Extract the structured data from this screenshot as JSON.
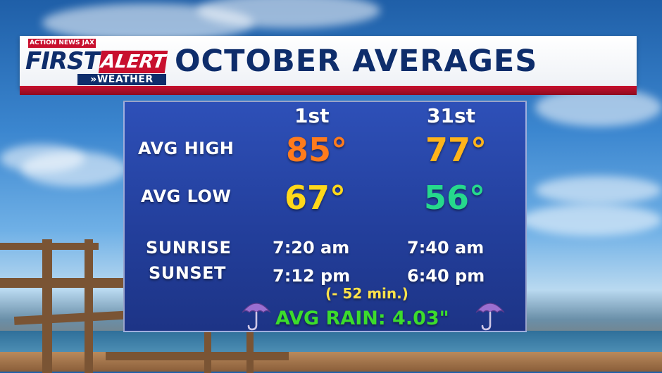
{
  "header": {
    "title": "OCTOBER AVERAGES",
    "logo": {
      "top_text": "ACTION NEWS JAX",
      "first": "FIRST",
      "alert": "ALERT",
      "weather": "»WEATHER"
    }
  },
  "table": {
    "columns": [
      "1st",
      "31st"
    ],
    "rows": {
      "avg_high": {
        "label": "AVG HIGH",
        "first": "85°",
        "last": "77°"
      },
      "avg_low": {
        "label": "AVG LOW",
        "first": "67°",
        "last": "56°"
      },
      "sunrise": {
        "label": "SUNRISE",
        "first": "7:20 am",
        "last": "7:40 am"
      },
      "sunset": {
        "label": "SUNSET",
        "first": "7:12 pm",
        "last": "6:40 pm"
      }
    },
    "daylight_change": "(- 52 min.)",
    "avg_rain": "AVG RAIN: 4.03\""
  },
  "colors": {
    "title": "#0e2d6b",
    "brand_red": "#c8102e",
    "panel": "#233f9c",
    "high_first": "#ff7b1c",
    "high_last": "#ffb41a",
    "low_first": "#ffd81a",
    "low_last": "#26d98c",
    "rain": "#3cdc2c",
    "umbrella": "#9b6fd0"
  },
  "icons": [
    "umbrella-icon",
    "umbrella-icon"
  ]
}
